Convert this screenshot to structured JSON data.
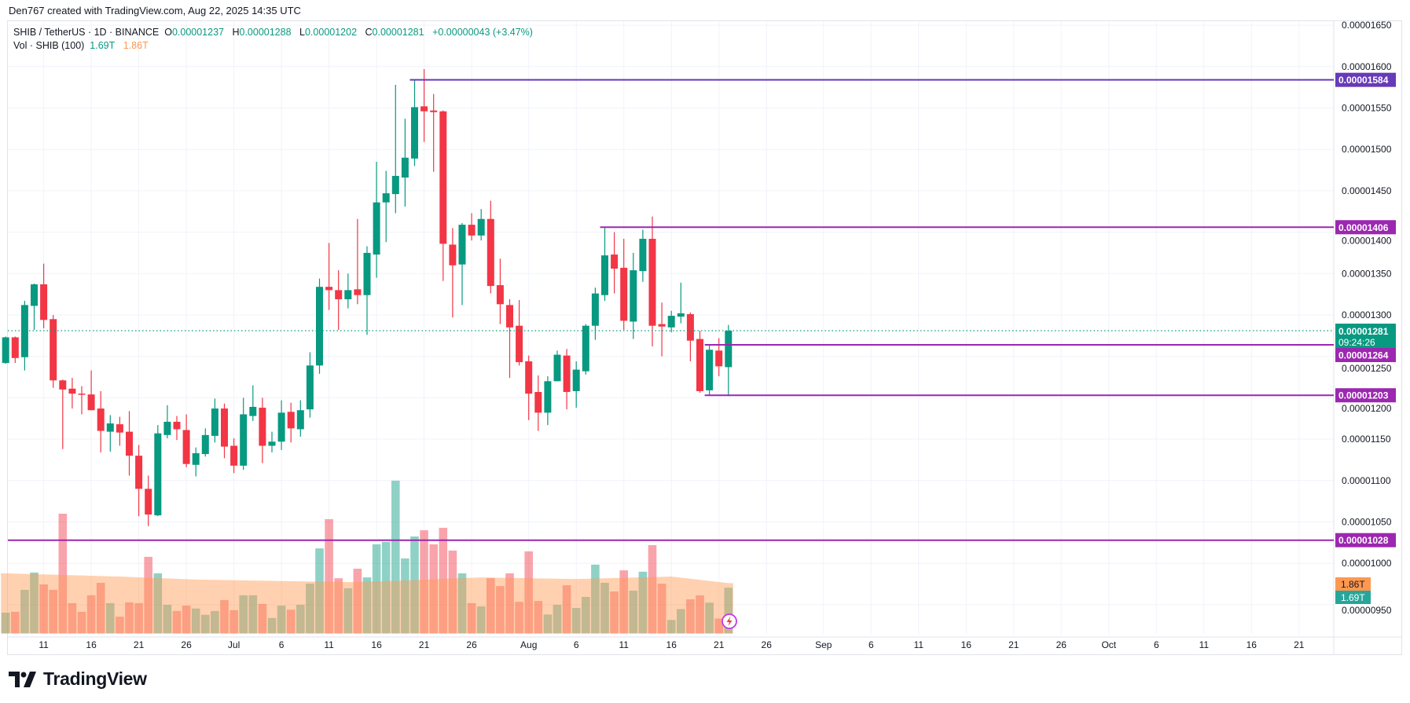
{
  "attribution": "Den767 created with TradingView.com, Aug 22, 2025 14:35 UTC",
  "legend": {
    "symbol": "SHIB / TetherUS · 1D · BINANCE",
    "o_label": "O",
    "o": "0.00001237",
    "h_label": "H",
    "h": "0.00001288",
    "l_label": "L",
    "l": "0.00001202",
    "c_label": "C",
    "c": "0.00001281",
    "change": "+0.00000043 (+3.47%)"
  },
  "volume_legend": {
    "label": "Vol · SHIB (100)",
    "value": "1.69T",
    "ma": "1.86T"
  },
  "brand": "TradingView",
  "colors": {
    "up": "#089981",
    "down": "#F23645",
    "vol_ma": "#FF9850",
    "level": "#9C27B0",
    "level_top": "#673AB7",
    "grid": "#F0F3FA",
    "text": "#131722"
  },
  "chart_data": {
    "type": "candlestick",
    "title": "SHIB / TetherUS · 1D · BINANCE",
    "price_unit": 1e-08,
    "start_date": "2025-06-07",
    "columns": [
      "open",
      "high",
      "low",
      "close",
      "volume_T"
    ],
    "candles": [
      [
        1242,
        1274,
        1241,
        1273,
        0.77
      ],
      [
        1273,
        1274,
        1242,
        1248,
        0.8
      ],
      [
        1249,
        1317,
        1233,
        1312,
        1.61
      ],
      [
        1311,
        1338,
        1282,
        1337,
        2.25
      ],
      [
        1337,
        1362,
        1284,
        1294,
        1.81
      ],
      [
        1295,
        1300,
        1212,
        1221,
        1.61
      ],
      [
        1221,
        1222,
        1138,
        1210,
        4.42
      ],
      [
        1211,
        1224,
        1187,
        1205,
        1.12
      ],
      [
        1205,
        1214,
        1180,
        1204,
        0.8
      ],
      [
        1204,
        1233,
        1185,
        1185,
        1.41
      ],
      [
        1187,
        1208,
        1134,
        1160,
        1.87
      ],
      [
        1159,
        1179,
        1135,
        1169,
        1.12
      ],
      [
        1168,
        1177,
        1142,
        1158,
        0.62
      ],
      [
        1159,
        1184,
        1106,
        1130,
        1.15
      ],
      [
        1130,
        1143,
        1057,
        1090,
        1.12
      ],
      [
        1090,
        1106,
        1045,
        1059,
        2.83
      ],
      [
        1058,
        1167,
        1057,
        1157,
        2.22
      ],
      [
        1155,
        1191,
        1151,
        1171,
        1.06
      ],
      [
        1171,
        1178,
        1149,
        1162,
        0.83
      ],
      [
        1161,
        1180,
        1116,
        1120,
        1.03
      ],
      [
        1119,
        1140,
        1105,
        1133,
        0.92
      ],
      [
        1132,
        1163,
        1129,
        1155,
        0.69
      ],
      [
        1154,
        1199,
        1146,
        1187,
        0.83
      ],
      [
        1187,
        1193,
        1127,
        1141,
        1.23
      ],
      [
        1142,
        1151,
        1109,
        1118,
        0.86
      ],
      [
        1118,
        1200,
        1113,
        1180,
        1.41
      ],
      [
        1178,
        1215,
        1172,
        1189,
        1.41
      ],
      [
        1188,
        1200,
        1121,
        1142,
        1.09
      ],
      [
        1142,
        1159,
        1134,
        1147,
        0.57
      ],
      [
        1147,
        1197,
        1137,
        1182,
        1.03
      ],
      [
        1183,
        1194,
        1146,
        1163,
        0.88
      ],
      [
        1162,
        1197,
        1153,
        1185,
        1.06
      ],
      [
        1186,
        1255,
        1176,
        1239,
        1.84
      ],
      [
        1239,
        1344,
        1229,
        1334,
        3.14
      ],
      [
        1334,
        1387,
        1306,
        1330,
        4.22
      ],
      [
        1330,
        1354,
        1282,
        1319,
        2.04
      ],
      [
        1319,
        1350,
        1308,
        1330,
        1.67
      ],
      [
        1331,
        1416,
        1313,
        1324,
        2.39
      ],
      [
        1324,
        1383,
        1276,
        1375,
        2.07
      ],
      [
        1373,
        1485,
        1345,
        1436,
        3.29
      ],
      [
        1436,
        1474,
        1388,
        1447,
        3.38
      ],
      [
        1446,
        1578,
        1423,
        1468,
        5.64
      ],
      [
        1466,
        1537,
        1431,
        1490,
        2.77
      ],
      [
        1489,
        1584,
        1480,
        1551,
        3.58
      ],
      [
        1552,
        1597,
        1509,
        1546,
        3.81
      ],
      [
        1547,
        1567,
        1473,
        1545,
        3.29
      ],
      [
        1546,
        1547,
        1341,
        1386,
        3.9
      ],
      [
        1385,
        1405,
        1297,
        1360,
        3.06
      ],
      [
        1361,
        1411,
        1312,
        1409,
        2.22
      ],
      [
        1409,
        1423,
        1390,
        1396,
        1.12
      ],
      [
        1396,
        1428,
        1390,
        1416,
        1.0
      ],
      [
        1416,
        1438,
        1326,
        1335,
        2.04
      ],
      [
        1336,
        1368,
        1289,
        1313,
        1.75
      ],
      [
        1312,
        1319,
        1224,
        1285,
        2.22
      ],
      [
        1287,
        1318,
        1239,
        1243,
        1.17
      ],
      [
        1244,
        1251,
        1173,
        1205,
        3.03
      ],
      [
        1207,
        1227,
        1160,
        1182,
        1.2
      ],
      [
        1182,
        1226,
        1167,
        1220,
        0.7
      ],
      [
        1220,
        1257,
        1220,
        1252,
        1.06
      ],
      [
        1251,
        1259,
        1186,
        1207,
        1.78
      ],
      [
        1208,
        1244,
        1188,
        1234,
        0.94
      ],
      [
        1232,
        1289,
        1228,
        1287,
        1.35
      ],
      [
        1287,
        1333,
        1270,
        1326,
        2.54
      ],
      [
        1324,
        1406,
        1317,
        1372,
        1.87
      ],
      [
        1373,
        1400,
        1326,
        1356,
        1.55
      ],
      [
        1357,
        1392,
        1282,
        1293,
        2.33
      ],
      [
        1292,
        1375,
        1271,
        1354,
        1.58
      ],
      [
        1353,
        1403,
        1340,
        1392,
        2.28
      ],
      [
        1392,
        1419,
        1262,
        1287,
        3.26
      ],
      [
        1289,
        1315,
        1250,
        1286,
        1.84
      ],
      [
        1285,
        1305,
        1279,
        1299,
        0.5
      ],
      [
        1298,
        1339,
        1290,
        1302,
        0.9
      ],
      [
        1301,
        1303,
        1244,
        1269,
        1.26
      ],
      [
        1271,
        1281,
        1206,
        1208,
        1.41
      ],
      [
        1209,
        1263,
        1203,
        1258,
        1.14
      ],
      [
        1257,
        1272,
        1226,
        1238,
        0.55
      ],
      [
        1237,
        1288,
        1202,
        1281,
        1.69
      ]
    ],
    "volume_ma_knots": [
      [
        0,
        2.22
      ],
      [
        12,
        2.1
      ],
      [
        20,
        1.99
      ],
      [
        30,
        1.93
      ],
      [
        36,
        1.9
      ],
      [
        40,
        1.93
      ],
      [
        50,
        2.07
      ],
      [
        60,
        2.01
      ],
      [
        70,
        2.1
      ],
      [
        76,
        1.86
      ]
    ],
    "ylim": [
      950,
      1650
    ],
    "y_ticks": [
      "0.00001650",
      "0.00001600",
      "0.00001550",
      "0.00001500",
      "0.00001450",
      "0.00001400",
      "0.00001350",
      "0.00001300",
      "0.00001250",
      "0.00001200",
      "0.00001150",
      "0.00001100",
      "0.00001050",
      "0.00001000",
      "0.00000950"
    ],
    "x_ticks": [
      {
        "label": "11",
        "date": "2025-06-11"
      },
      {
        "label": "16",
        "date": "2025-06-16"
      },
      {
        "label": "21",
        "date": "2025-06-21"
      },
      {
        "label": "26",
        "date": "2025-06-26"
      },
      {
        "label": "Jul",
        "date": "2025-07-01"
      },
      {
        "label": "6",
        "date": "2025-07-06"
      },
      {
        "label": "11",
        "date": "2025-07-11"
      },
      {
        "label": "16",
        "date": "2025-07-16"
      },
      {
        "label": "21",
        "date": "2025-07-21"
      },
      {
        "label": "26",
        "date": "2025-07-26"
      },
      {
        "label": "Aug",
        "date": "2025-08-01"
      },
      {
        "label": "6",
        "date": "2025-08-06"
      },
      {
        "label": "11",
        "date": "2025-08-11"
      },
      {
        "label": "16",
        "date": "2025-08-16"
      },
      {
        "label": "21",
        "date": "2025-08-21"
      },
      {
        "label": "26",
        "date": "2025-08-26"
      },
      {
        "label": "Sep",
        "date": "2025-09-01"
      },
      {
        "label": "6",
        "date": "2025-09-06"
      },
      {
        "label": "11",
        "date": "2025-09-11"
      },
      {
        "label": "16",
        "date": "2025-09-16"
      },
      {
        "label": "21",
        "date": "2025-09-21"
      },
      {
        "label": "26",
        "date": "2025-09-26"
      },
      {
        "label": "Oct",
        "date": "2025-10-01"
      },
      {
        "label": "6",
        "date": "2025-10-06"
      },
      {
        "label": "11",
        "date": "2025-10-11"
      },
      {
        "label": "16",
        "date": "2025-10-16"
      },
      {
        "label": "21",
        "date": "2025-10-21"
      }
    ],
    "horizontal_lines": [
      {
        "price": 1584,
        "label": "0.00001584",
        "start_date": "2025-07-20",
        "color": "#673AB7"
      },
      {
        "price": 1406,
        "label": "0.00001406",
        "start_date": "2025-08-09",
        "color": "#9C27B0"
      },
      {
        "price": 1264,
        "label": "0.00001264",
        "start_date": "2025-08-20",
        "color": "#9C27B0"
      },
      {
        "price": 1203,
        "label": "0.00001203",
        "start_date": "2025-08-20",
        "color": "#9C27B0"
      },
      {
        "price": 1028,
        "label": "0.00001028",
        "start_date": "2025-06-07",
        "color": "#9C27B0"
      }
    ],
    "last_price": {
      "price": 1281,
      "label": "0.00001281",
      "countdown": "09:24:26"
    },
    "volume_labels": {
      "ma": "1.86T",
      "value": "1.69T"
    },
    "grid": true
  }
}
